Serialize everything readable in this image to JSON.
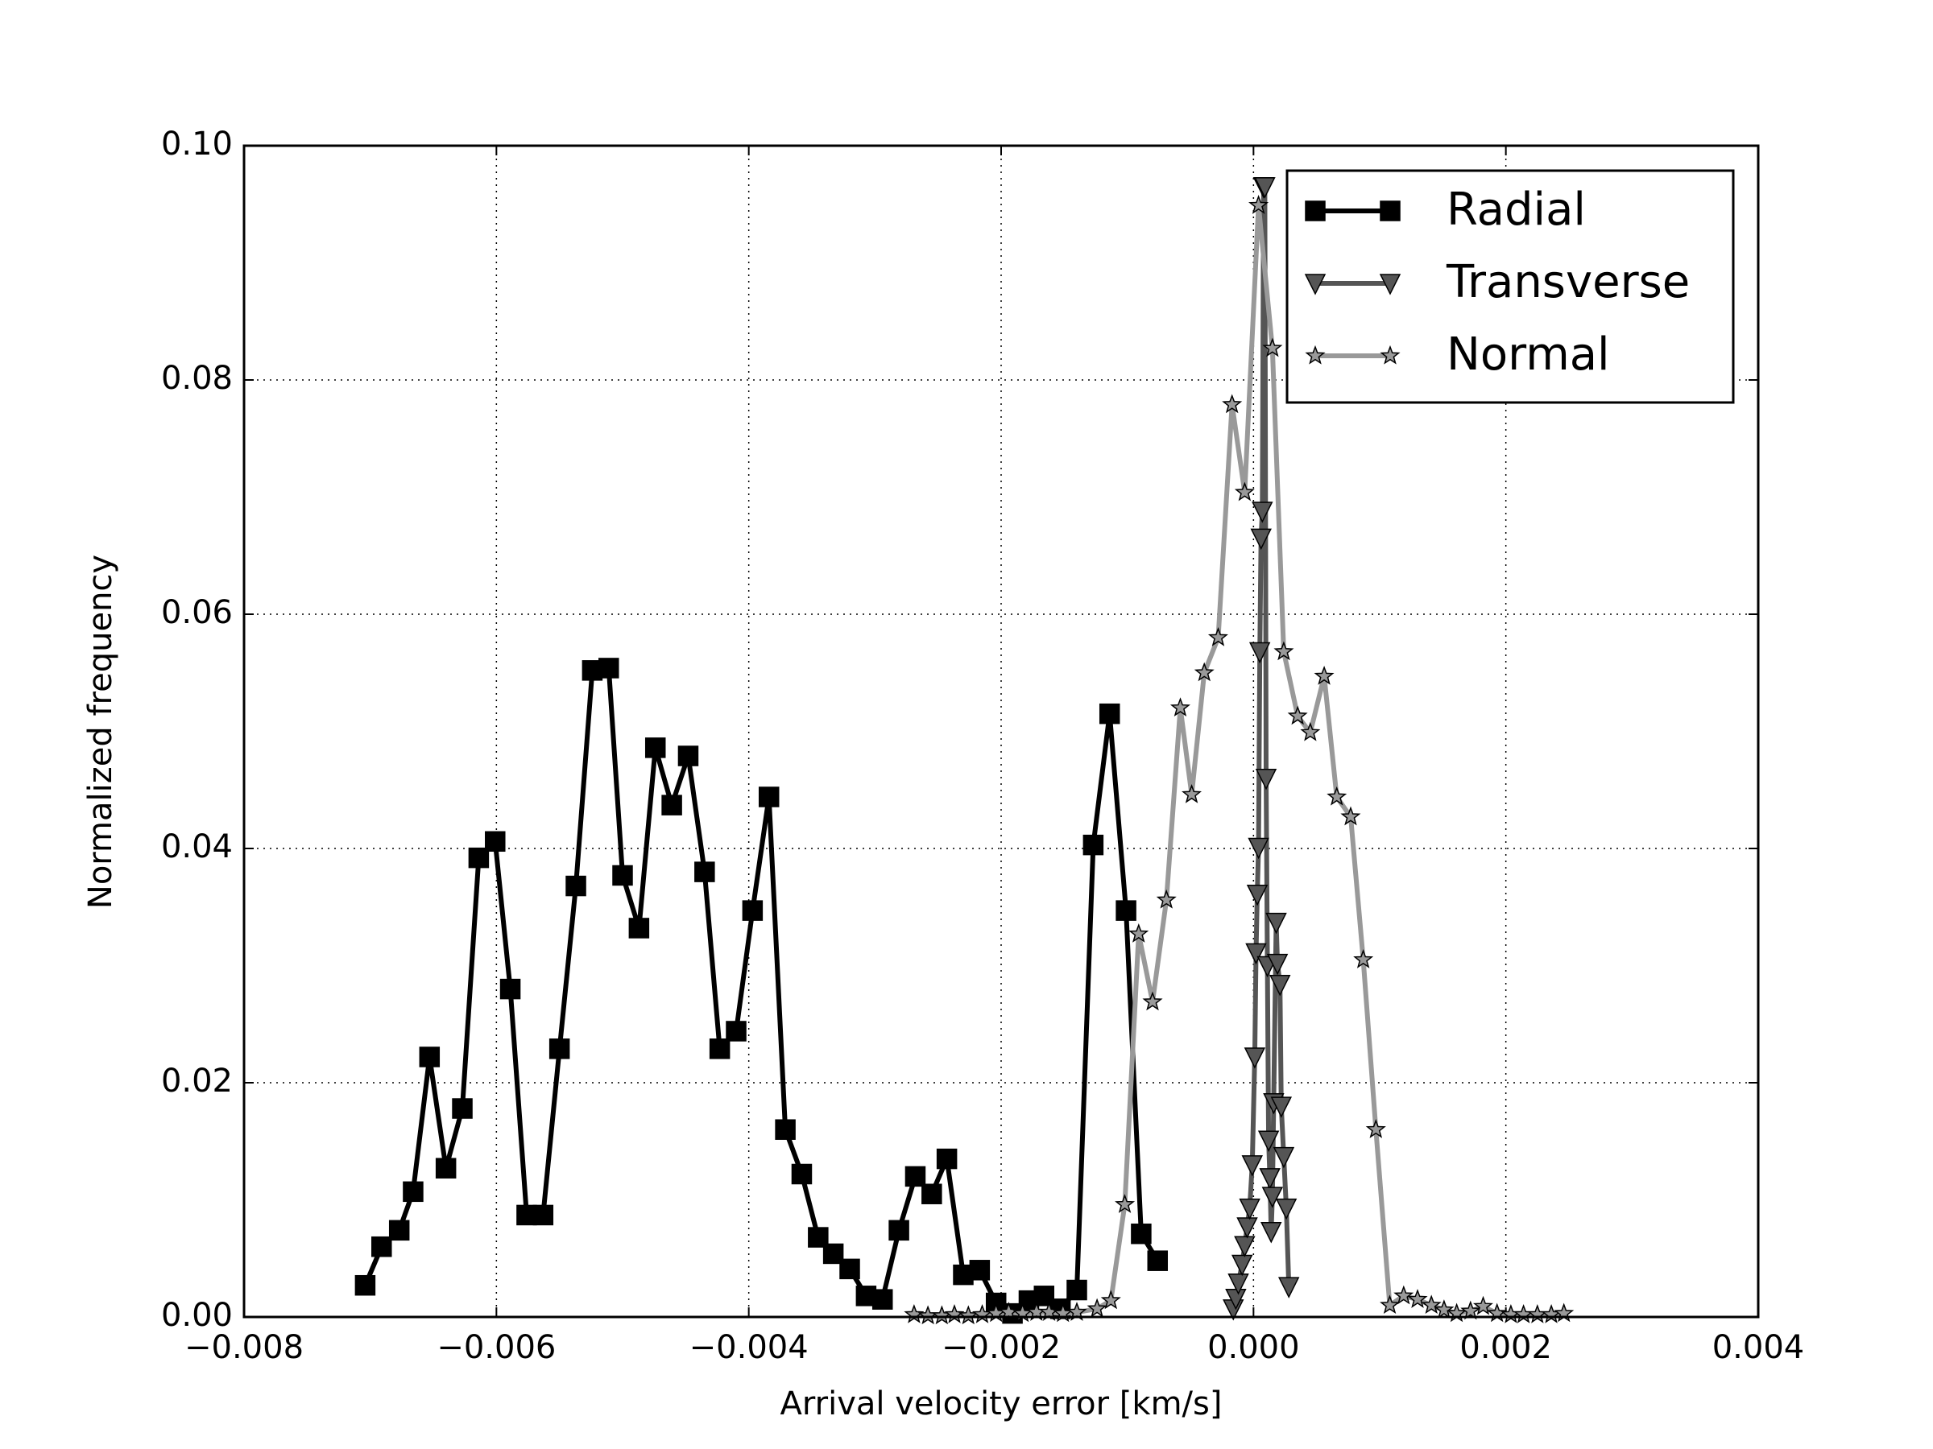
{
  "chart_data": {
    "type": "line",
    "x_label": "Arrival velocity error [km/s]",
    "y_label": "Normalized frequency",
    "xlim": [
      -0.008,
      0.004
    ],
    "ylim": [
      0,
      0.1
    ],
    "xticks": [
      {
        "value": -0.008,
        "label": "−0.008"
      },
      {
        "value": -0.006,
        "label": "−0.006"
      },
      {
        "value": -0.004,
        "label": "−0.004"
      },
      {
        "value": -0.002,
        "label": "−0.002"
      },
      {
        "value": 0,
        "label": "0.000"
      },
      {
        "value": 0.002,
        "label": "0.002"
      },
      {
        "value": 0.004,
        "label": "0.004"
      }
    ],
    "yticks": [
      {
        "value": 0,
        "label": "0.00"
      },
      {
        "value": 0.02,
        "label": "0.02"
      },
      {
        "value": 0.04,
        "label": "0.04"
      },
      {
        "value": 0.06,
        "label": "0.06"
      },
      {
        "value": 0.08,
        "label": "0.08"
      },
      {
        "value": 0.1,
        "label": "0.10"
      }
    ],
    "grid": true,
    "legend": "upper right",
    "series": [
      {
        "name": "Radial",
        "color": "#000000",
        "marker": "square",
        "x": [
          -0.00704,
          -0.00691,
          -0.00677,
          -0.00666,
          -0.00653,
          -0.0064,
          -0.00627,
          -0.00614,
          -0.00601,
          -0.00589,
          -0.00576,
          -0.00563,
          -0.0055,
          -0.00537,
          -0.00524,
          -0.00511,
          -0.005,
          -0.00487,
          -0.00474,
          -0.00461,
          -0.00448,
          -0.00435,
          -0.00423,
          -0.0041,
          -0.00397,
          -0.00384,
          -0.00371,
          -0.00358,
          -0.00345,
          -0.00333,
          -0.0032,
          -0.00307,
          -0.00294,
          -0.00281,
          -0.00268,
          -0.00255,
          -0.00243,
          -0.0023,
          -0.00217,
          -0.00204,
          -0.00191,
          -0.00178,
          -0.00166,
          -0.00153,
          -0.0014,
          -0.00127,
          -0.00114,
          -0.00101,
          -0.00089,
          -0.00076
        ],
        "values": [
          0.0027,
          0.006,
          0.0074,
          0.0107,
          0.0222,
          0.0127,
          0.0178,
          0.0392,
          0.0406,
          0.028,
          0.0087,
          0.0087,
          0.0229,
          0.0368,
          0.0552,
          0.0554,
          0.0377,
          0.0332,
          0.0486,
          0.0437,
          0.0479,
          0.038,
          0.0229,
          0.0244,
          0.0347,
          0.0444,
          0.016,
          0.0122,
          0.0068,
          0.0054,
          0.0041,
          0.0018,
          0.0015,
          0.0074,
          0.012,
          0.0105,
          0.0135,
          0.0036,
          0.004,
          0.0012,
          0.0003,
          0.0014,
          0.0018,
          0.0007,
          0.0023,
          0.0403,
          0.0515,
          0.0347,
          0.0071,
          0.0048
        ]
      },
      {
        "name": "Transverse",
        "color": "#555555",
        "marker": "triangle_down",
        "x": [
          -0.00016,
          -0.00014,
          -0.00012,
          -9e-05,
          -7e-05,
          -5e-05,
          -3e-05,
          -1e-05,
          1e-05,
          2e-05,
          3e-05,
          4e-05,
          5e-05,
          6e-05,
          7e-05,
          8e-05,
          9e-05,
          0.0001,
          0.00011,
          0.00012,
          0.00013,
          0.00014,
          0.00015,
          0.00016,
          0.00018,
          0.00019,
          0.00021,
          0.00022,
          0.00024,
          0.00026,
          0.00028
        ],
        "values": [
          0.0007,
          0.0016,
          0.0029,
          0.0045,
          0.0061,
          0.0077,
          0.0093,
          0.013,
          0.0222,
          0.0311,
          0.0361,
          0.0401,
          0.0568,
          0.0665,
          0.0688,
          0.0965,
          0.0965,
          0.046,
          0.03,
          0.0151,
          0.0119,
          0.0073,
          0.0103,
          0.0183,
          0.0337,
          0.0302,
          0.0284,
          0.018,
          0.0137,
          0.0093,
          0.0026
        ]
      },
      {
        "name": "Normal",
        "color": "#999999",
        "marker": "star",
        "x": [
          -0.00269,
          -0.00258,
          -0.00247,
          -0.00237,
          -0.00226,
          -0.00215,
          -0.00204,
          -0.00194,
          -0.00183,
          -0.00172,
          -0.00162,
          -0.00151,
          -0.0014,
          -0.00124,
          -0.00113,
          -0.00102,
          -0.00091,
          -0.0008,
          -0.00069,
          -0.00058,
          -0.00049,
          -0.00039,
          -0.00028,
          -0.00017,
          -7e-05,
          4e-05,
          0.00015,
          0.00024,
          0.00035,
          0.00045,
          0.00056,
          0.00066,
          0.00077,
          0.00087,
          0.00097,
          0.00108,
          0.00119,
          0.0013,
          0.00141,
          0.00151,
          0.00161,
          0.00172,
          0.00182,
          0.00193,
          0.00204,
          0.00214,
          0.00225,
          0.00236,
          0.00246
        ],
        "values": [
          0.0002,
          0.0001,
          0.0001,
          0.0002,
          0.0001,
          0.0002,
          0.0003,
          0.0004,
          0.0003,
          0.0004,
          0.0004,
          0.0003,
          0.0004,
          0.0007,
          0.0014,
          0.0096,
          0.0327,
          0.0269,
          0.0356,
          0.052,
          0.0446,
          0.055,
          0.058,
          0.0779,
          0.0704,
          0.0949,
          0.0827,
          0.0568,
          0.0513,
          0.0499,
          0.0547,
          0.0444,
          0.0427,
          0.0305,
          0.016,
          0.001,
          0.0018,
          0.0015,
          0.001,
          0.0006,
          0.0003,
          0.0005,
          0.0009,
          0.0003,
          0.0002,
          0.0002,
          0.0002,
          0.0002,
          0.0003
        ]
      }
    ]
  }
}
